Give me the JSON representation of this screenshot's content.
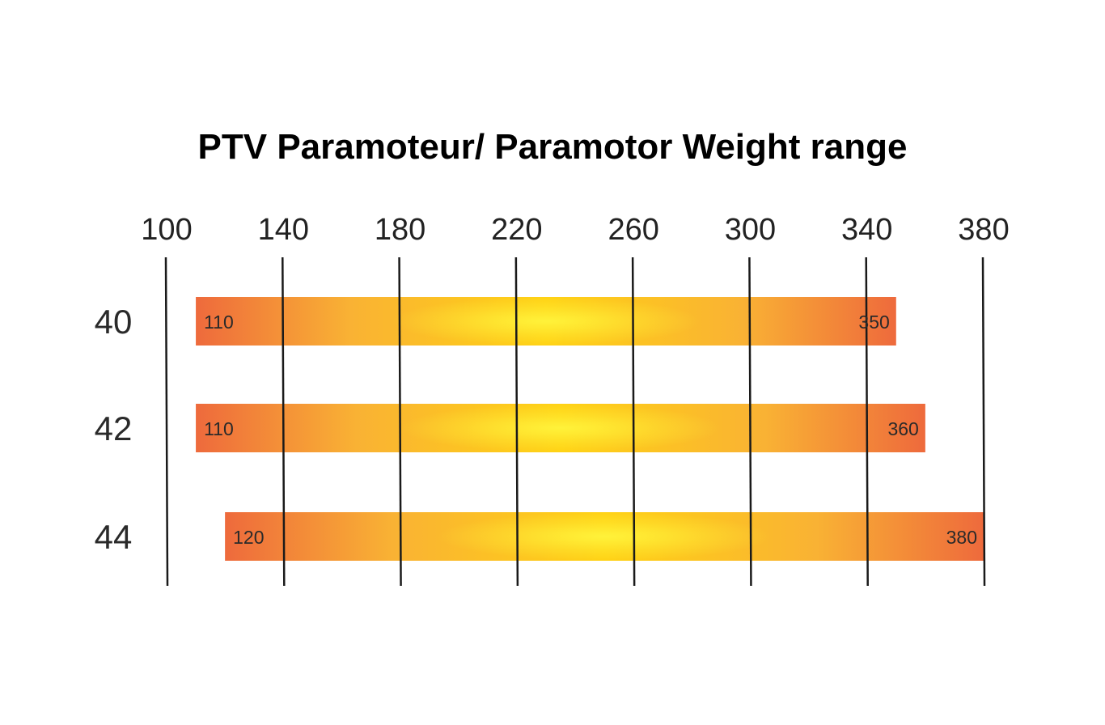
{
  "chart_data": {
    "type": "bar",
    "orientation": "horizontal",
    "title": "PTV Paramoteur/ Paramotor Weight range",
    "xlabel": "",
    "ylabel": "",
    "xlim": [
      100,
      380
    ],
    "x_ticks": [
      "100",
      "140",
      "180",
      "220",
      "260",
      "300",
      "340",
      "380"
    ],
    "tick_position": "top",
    "grid": true,
    "categories": [
      "40",
      "42",
      "44"
    ],
    "ranges": [
      {
        "category": "40",
        "min": 110,
        "max": 350,
        "min_label": "110",
        "max_label": "350"
      },
      {
        "category": "42",
        "min": 110,
        "max": 360,
        "min_label": "110",
        "max_label": "360"
      },
      {
        "category": "44",
        "min": 120,
        "max": 380,
        "min_label": "120",
        "max_label": "380"
      }
    ],
    "colors": {
      "bar_edge": "#ee6a3c",
      "bar_mid": "#f9b234",
      "bar_center": "#fff23a",
      "gridline": "#1a1a1a"
    }
  }
}
